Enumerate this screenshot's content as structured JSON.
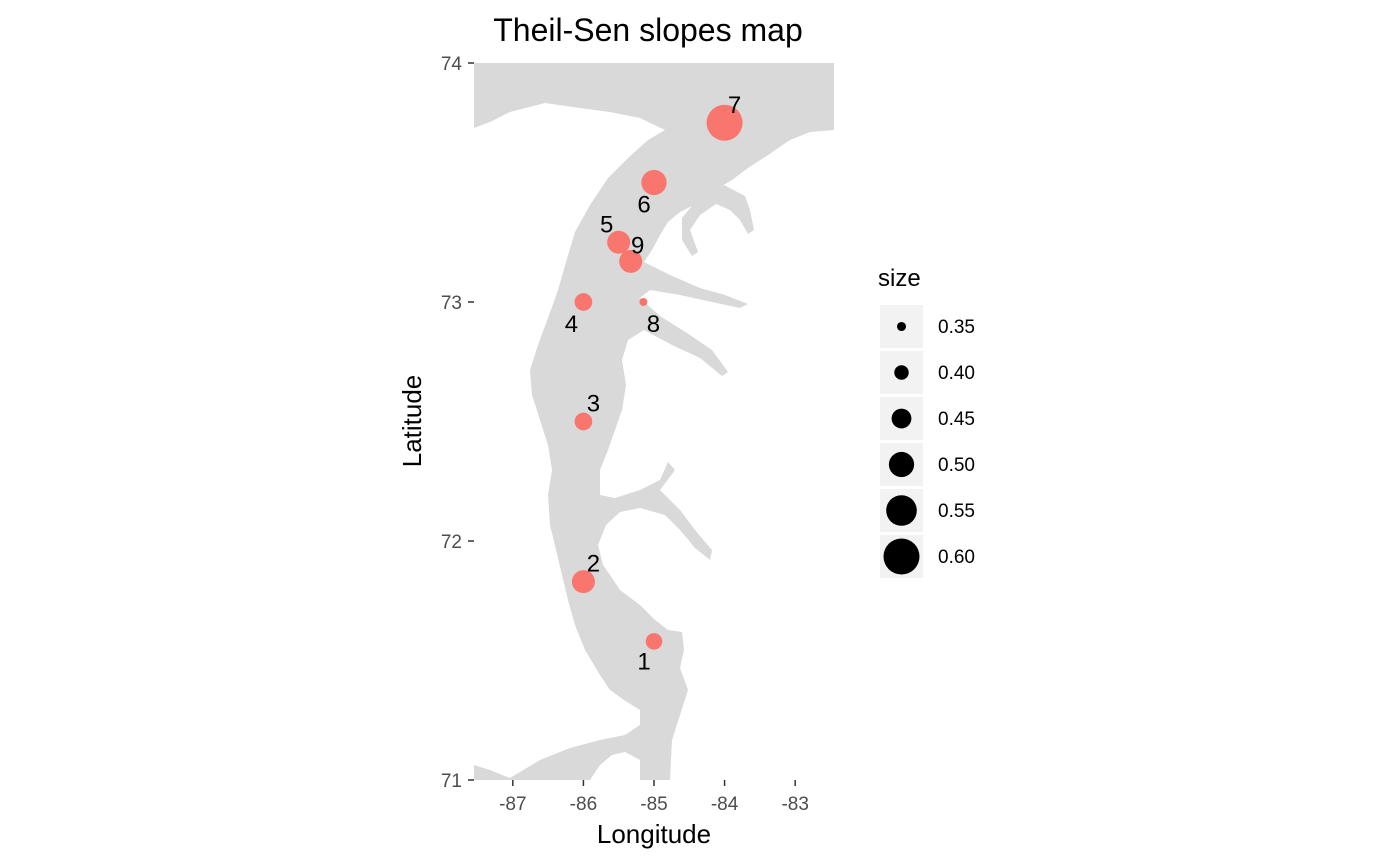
{
  "title": "Theil-Sen slopes map",
  "x_axis": {
    "label": "Longitude",
    "ticks": [
      -87,
      -86,
      -85,
      -84,
      -83
    ],
    "range": [
      -87.55,
      -82.45
    ]
  },
  "y_axis": {
    "label": "Latitude",
    "ticks": [
      71,
      72,
      73,
      74
    ],
    "range": [
      71.0,
      74.0
    ]
  },
  "colors": {
    "point": "#F8766D",
    "land": "#D9D9D9",
    "legend_key_bg": "#F2F2F2",
    "legend_point": "#000000"
  },
  "chart_data": {
    "type": "scatter",
    "points": [
      {
        "label": "1",
        "x": -85.0,
        "y": 71.58,
        "size": 0.42
      },
      {
        "label": "2",
        "x": -86.0,
        "y": 71.83,
        "size": 0.48
      },
      {
        "label": "3",
        "x": -86.0,
        "y": 72.5,
        "size": 0.43
      },
      {
        "label": "4",
        "x": -86.0,
        "y": 73.0,
        "size": 0.43
      },
      {
        "label": "5",
        "x": -85.5,
        "y": 73.25,
        "size": 0.48
      },
      {
        "label": "6",
        "x": -85.0,
        "y": 73.5,
        "size": 0.5
      },
      {
        "label": "7",
        "x": -84.0,
        "y": 73.75,
        "size": 0.6
      },
      {
        "label": "8",
        "x": -85.15,
        "y": 73.0,
        "size": 0.34
      },
      {
        "label": "9",
        "x": -85.33,
        "y": 73.17,
        "size": 0.48
      }
    ],
    "legend": {
      "title": "size",
      "entries": [
        "0.35",
        "0.40",
        "0.45",
        "0.50",
        "0.55",
        "0.60"
      ]
    }
  }
}
